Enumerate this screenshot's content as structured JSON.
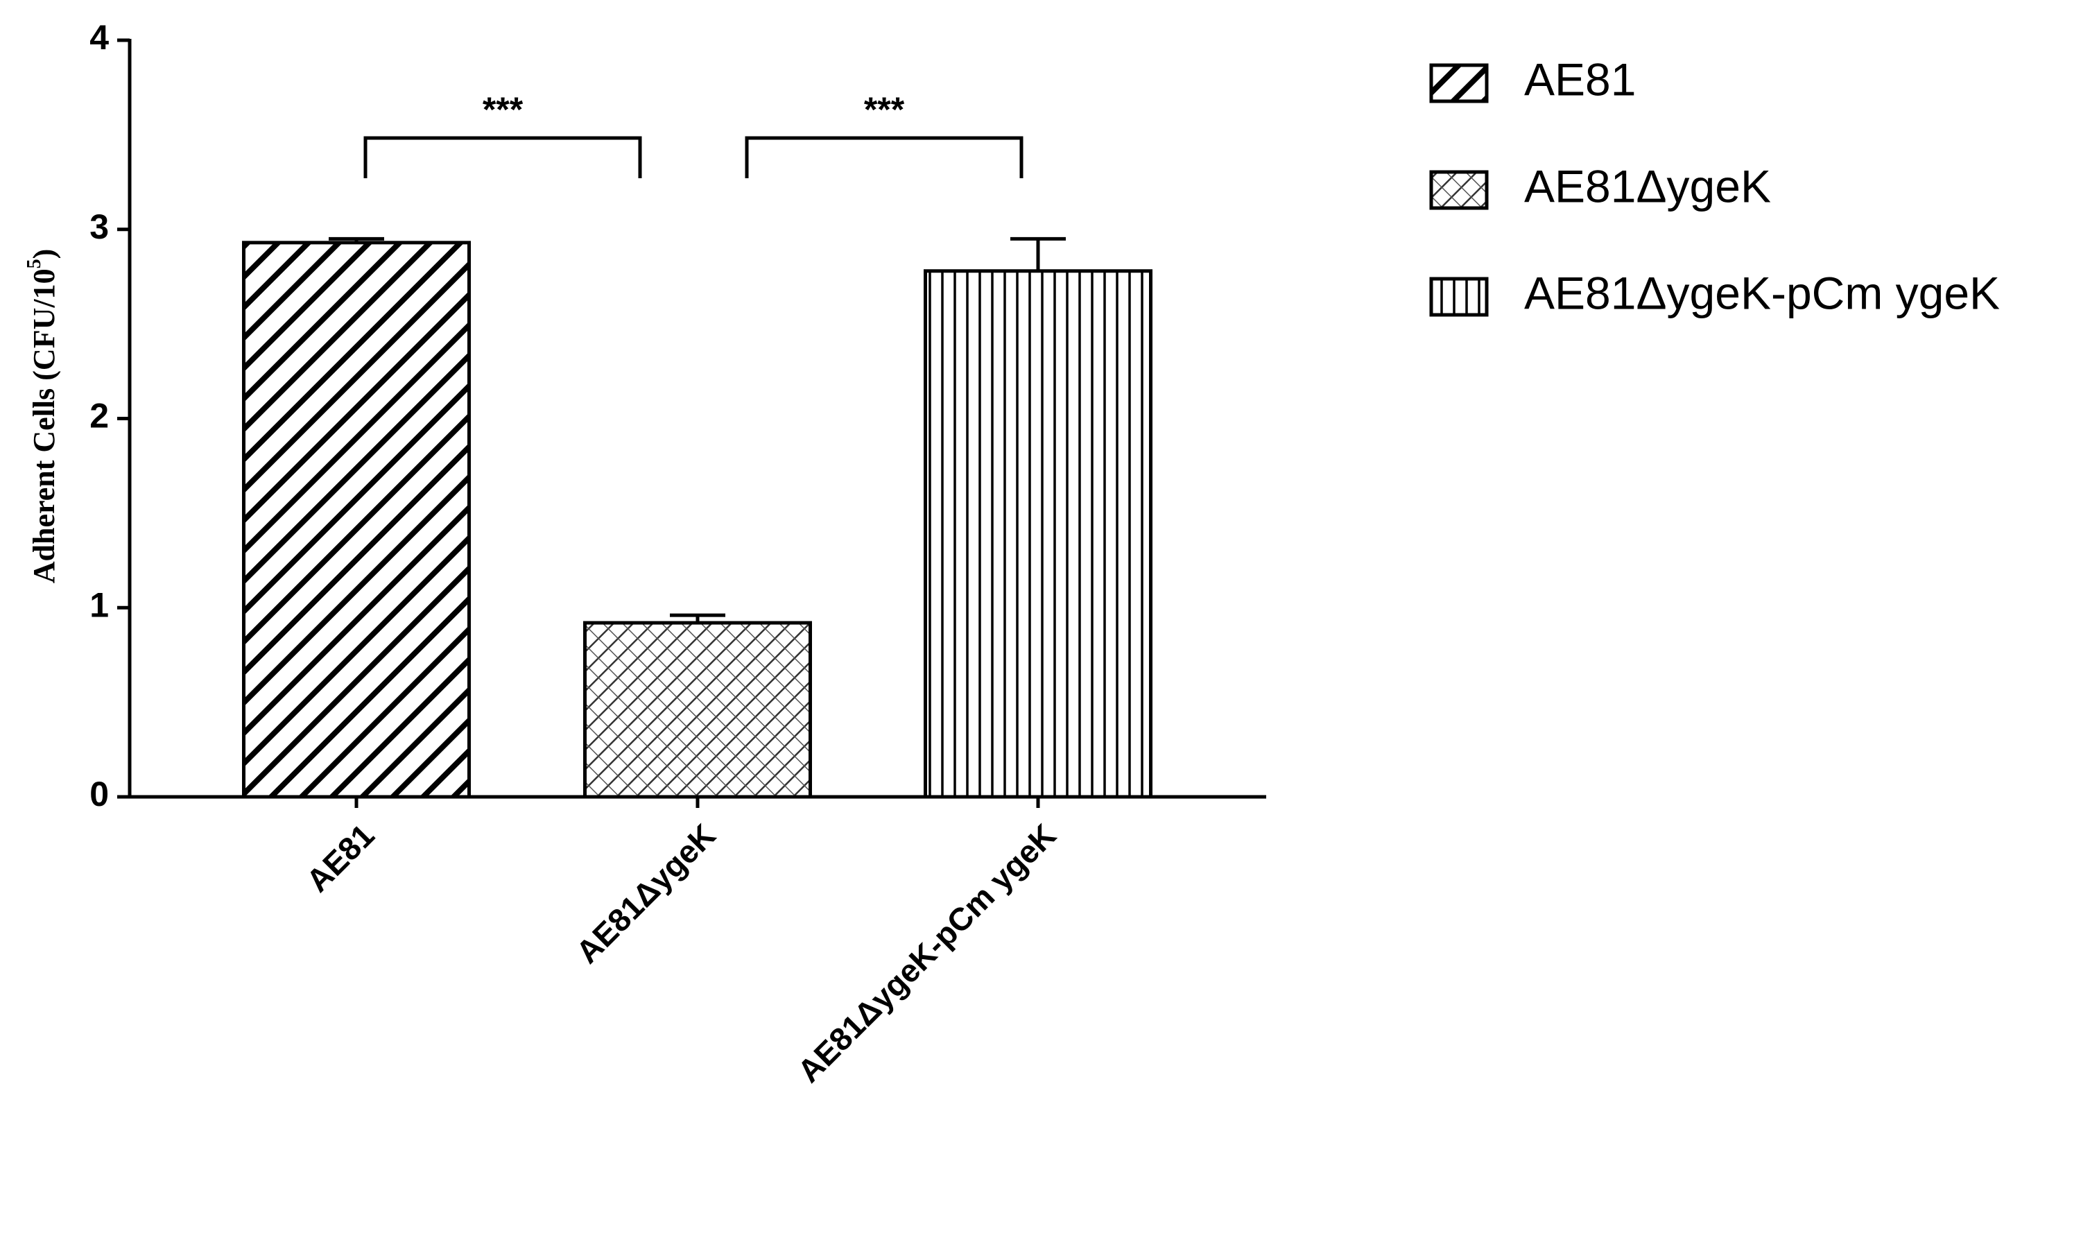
{
  "chart_data": {
    "type": "bar",
    "y_label": {
      "text": "Adherent Cells (CFU/10",
      "sup": "5",
      "end": ")"
    },
    "categories": [
      "AE81",
      "AE81ΔygeK",
      "AE81ΔygeK-pCm ygeK"
    ],
    "values": [
      2.93,
      0.92,
      2.78
    ],
    "errors": [
      0.02,
      0.04,
      0.17
    ],
    "patterns": [
      "diagonal",
      "crosshatch",
      "vertical"
    ],
    "color": "#000000",
    "annotations": [
      "***",
      "***"
    ],
    "ylim": [
      0,
      4
    ],
    "yticks": [
      0,
      1,
      2,
      3,
      4
    ],
    "grid": false,
    "legend": "upper right"
  }
}
